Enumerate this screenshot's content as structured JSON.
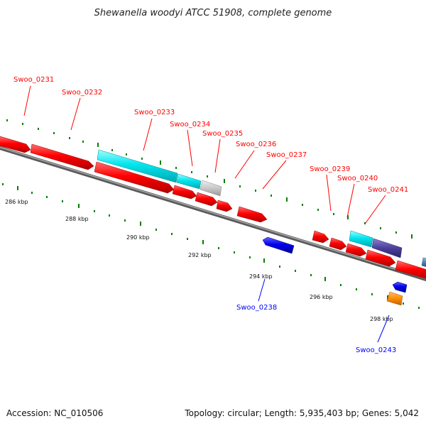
{
  "title": "Shewanella woodyi ATCC 51908, complete genome",
  "footer": {
    "accession": "Accession: NC_010506",
    "topology": "Topology: circular; Length: 5,935,403 bp; Genes: 5,042"
  },
  "colors": {
    "forward_gene": "#ff0000",
    "reverse_gene": "#0000ff",
    "cyan_feature": "#00e5ee",
    "gray_feature": "#c8c8c8",
    "purple_feature": "#4b3f9a",
    "orange_feature": "#ff8c00",
    "steel_feature": "#4682b4",
    "tick": "#008000",
    "backbone": "#808080"
  },
  "ruler": {
    "kbp_labels": [
      "286 kbp",
      "288 kbp",
      "290 kbp",
      "292 kbp",
      "294 kbp",
      "296 kbp",
      "298 kbp"
    ]
  },
  "gene_labels": {
    "top": [
      "Swoo_0231",
      "Swoo_0232",
      "Swoo_0233",
      "Swoo_0234",
      "Swoo_0235",
      "Swoo_0236",
      "Swoo_0237",
      "Swoo_0239",
      "Swoo_0240",
      "Swoo_0241"
    ],
    "bottom": [
      "Swoo_0238",
      "Swoo_0243"
    ]
  }
}
